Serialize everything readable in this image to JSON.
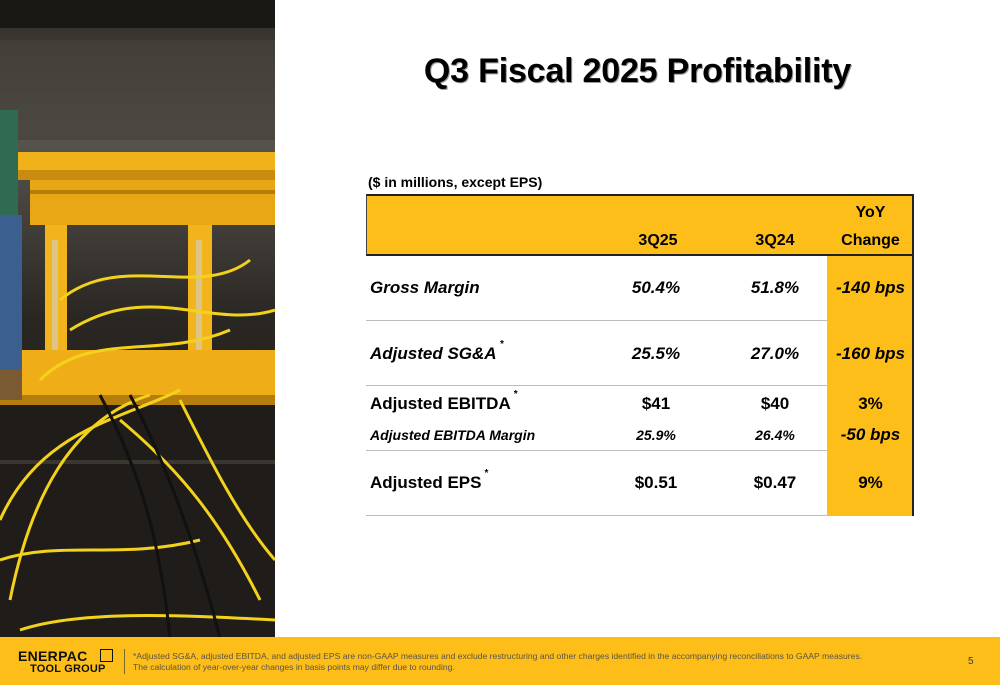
{
  "title": "Q3 Fiscal 2025 Profitability",
  "subtitle": "($ in millions, except EPS)",
  "table": {
    "headers": {
      "col1": "3Q25",
      "col2": "3Q24",
      "col3_line1": "YoY",
      "col3_line2": "Change"
    },
    "rows": [
      {
        "label": "Gross Margin",
        "star": "",
        "v1": "50.4%",
        "v2": "51.8%",
        "v3": "-140 bps"
      },
      {
        "label": "Adjusted SG&A",
        "star": "*",
        "v1": "25.5%",
        "v2": "27.0%",
        "v3": "-160 bps"
      },
      {
        "label": "Adjusted EBITDA",
        "star": "*",
        "v1": "$41",
        "v2": "$40",
        "v3": "3%"
      },
      {
        "label": "Adjusted EBITDA Margin",
        "star": "",
        "v1": "25.9%",
        "v2": "26.4%",
        "v3": "-50 bps"
      },
      {
        "label": "Adjusted EPS",
        "star": "*",
        "v1": "$0.51",
        "v2": "$0.47",
        "v3": "9%"
      }
    ]
  },
  "footer": {
    "logo_line1": "ENERPAC",
    "logo_line2": "TOOL GROUP",
    "note_line1": "*Adjusted SG&A, adjusted EBITDA, and adjusted EPS are non-GAAP measures and exclude restructuring and other charges identified in the accompanying reconciliations to GAAP measures.",
    "note_line2": "The calculation of year-over-year changes in basis points may differ due to rounding.",
    "page_number": "5"
  },
  "colors": {
    "accent": "#fdbe19",
    "text": "#000000"
  }
}
